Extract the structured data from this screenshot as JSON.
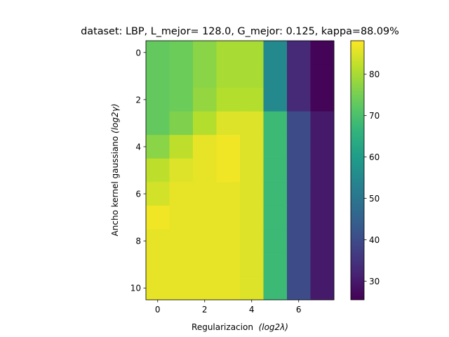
{
  "chart_data": {
    "type": "heatmap",
    "title": "dataset: LBP, L_mejor= 128.0, G_mejor: 0.125, kappa=88.09%",
    "xlabel": {
      "text": "Regularizacion  ",
      "math": "(log2λ)"
    },
    "ylabel": {
      "text": "Ancho kernel gaussiano ",
      "math": "(log2γ)"
    },
    "x_ticks": [
      "0",
      "2",
      "4",
      "6"
    ],
    "y_ticks": [
      "0",
      "2",
      "4",
      "6",
      "8",
      "10"
    ],
    "x_tick_values": [
      0,
      2,
      4,
      6
    ],
    "y_tick_values": [
      0,
      2,
      4,
      6,
      8,
      10
    ],
    "n_cols": 8,
    "n_rows": 11,
    "colormap": "viridis",
    "vmin": 25.5,
    "vmax": 88.1,
    "colorbar_ticks": [
      30,
      40,
      50,
      60,
      70,
      80
    ],
    "values": [
      [
        73,
        74,
        77,
        80,
        80,
        55,
        33,
        26
      ],
      [
        73,
        74,
        77,
        80,
        80,
        55,
        33,
        26
      ],
      [
        73,
        74,
        78,
        81,
        81,
        55,
        33,
        26
      ],
      [
        73,
        76,
        81,
        85,
        85,
        68,
        40,
        30
      ],
      [
        77,
        82,
        86,
        87,
        85,
        68,
        40,
        30
      ],
      [
        82,
        85,
        86,
        87,
        85,
        68,
        40,
        30
      ],
      [
        84,
        86,
        86,
        86,
        85,
        68,
        40,
        30
      ],
      [
        87,
        86,
        86,
        86,
        85,
        68,
        40,
        30
      ],
      [
        86,
        86,
        86,
        86,
        85,
        68,
        40,
        30
      ],
      [
        86,
        86,
        86,
        86,
        85,
        68,
        40,
        30
      ],
      [
        86,
        86,
        86,
        86,
        85,
        68,
        40,
        30
      ]
    ]
  }
}
